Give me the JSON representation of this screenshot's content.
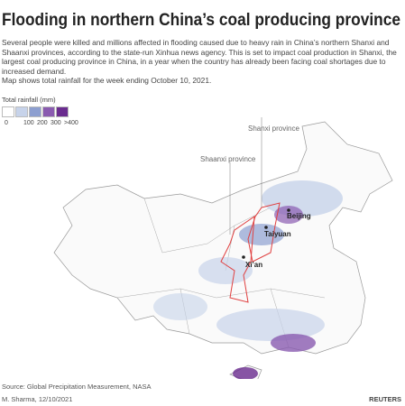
{
  "header": {
    "title": "Flooding in northern China’s coal producing province",
    "description": "Several people were killed and millions affected in flooding caused due to heavy rain in China’s northern Shanxi and Shaanxi provinces, according to the state-run Xinhua news agency. This is set to impact coal production in Shanxi, the largest coal producing province in China, in a year when the country has already been facing coal shortages due to increased demand.",
    "note": "Map shows total rainfall for the week ending October 10, 2021."
  },
  "legend": {
    "title": "Total rainfall (mm)",
    "items": [
      {
        "label": "0",
        "color": "#ffffff"
      },
      {
        "label": "100",
        "color": "#c7d3ea"
      },
      {
        "label": "200",
        "color": "#8d9fd0"
      },
      {
        "label": "300",
        "color": "#8a5bb0"
      },
      {
        "label": ">400",
        "color": "#6a2c8f"
      }
    ]
  },
  "map": {
    "regions": [
      {
        "label": "Shanxi province"
      },
      {
        "label": "Shaanxi province"
      }
    ],
    "cities": [
      {
        "label": "Beijing"
      },
      {
        "label": "Taiyuan"
      },
      {
        "label": "Xi’an"
      }
    ]
  },
  "footer": {
    "source": "Source: Global Precipitation Measurement, NASA",
    "credit": "M. Sharma, 12/10/2021",
    "brand": "REUTERS"
  }
}
